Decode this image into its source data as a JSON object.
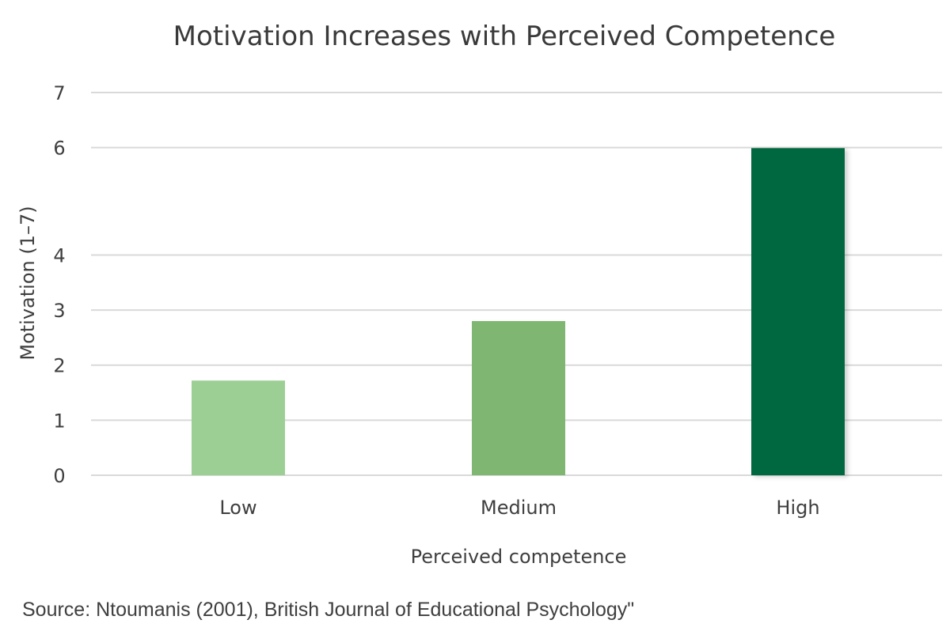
{
  "chart_data": {
    "type": "bar",
    "title": "Motivation Increases with Perceived Competence",
    "xlabel": "Perceived competence",
    "ylabel": "Motivation (1–7)",
    "categories": [
      "Low",
      "Medium",
      "High"
    ],
    "values": [
      1.72,
      2.8,
      5.94
    ],
    "y_ticks": [
      {
        "label": "0",
        "value": 0
      },
      {
        "label": "1",
        "value": 1
      },
      {
        "label": "2",
        "value": 2
      },
      {
        "label": "3",
        "value": 3
      },
      {
        "label": "4",
        "value": 4
      },
      {
        "label": "6",
        "value": 5.95
      },
      {
        "label": "7",
        "value": 6.95
      }
    ],
    "ylim": [
      0,
      6.95
    ],
    "grid": true,
    "colors": [
      "#9ccf93",
      "#7fb772",
      "#02683f"
    ]
  },
  "source": "Source: Ntoumanis (2001), British Journal of Educational Psychology\""
}
